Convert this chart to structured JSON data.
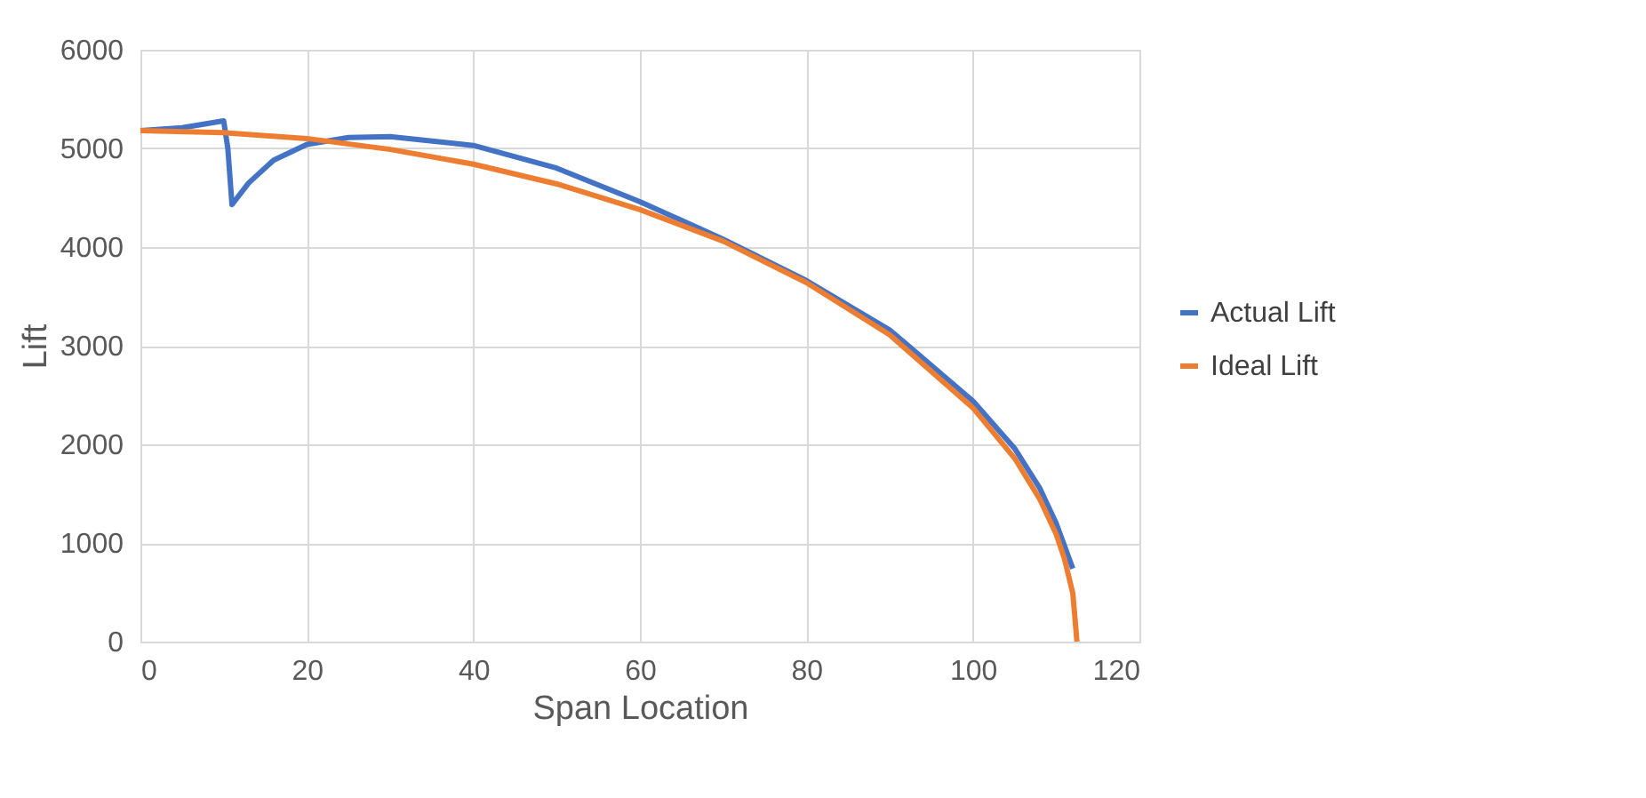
{
  "chart_data": {
    "type": "line",
    "xlabel": "Span Location",
    "ylabel": "Lift",
    "xlim": [
      0,
      120
    ],
    "xticks": [
      0,
      20,
      40,
      60,
      80,
      100,
      120
    ],
    "ylim": [
      0,
      6000
    ],
    "yticks": [
      0,
      1000,
      2000,
      3000,
      4000,
      5000,
      6000
    ],
    "grid": true,
    "legend": "right",
    "marker": "none",
    "line_style": "solid",
    "series": [
      {
        "name": "Actual Lift",
        "color": "#4472c4",
        "x": [
          0,
          5,
          10,
          10.5,
          11,
          13,
          16,
          20,
          25,
          30,
          40,
          50,
          60,
          70,
          80,
          90,
          100,
          105,
          108,
          110,
          112
        ],
        "values": [
          5180,
          5210,
          5280,
          5000,
          4430,
          4650,
          4880,
          5040,
          5110,
          5120,
          5030,
          4800,
          4460,
          4080,
          3660,
          3160,
          2440,
          1960,
          1560,
          1200,
          740
        ]
      },
      {
        "name": "Ideal Lift",
        "color": "#ed7d31",
        "x": [
          0,
          10,
          20,
          30,
          40,
          50,
          60,
          70,
          80,
          90,
          100,
          105,
          108,
          110,
          111,
          112,
          112.5
        ],
        "values": [
          5180,
          5160,
          5100,
          4990,
          4840,
          4640,
          4380,
          4060,
          3640,
          3110,
          2370,
          1860,
          1450,
          1090,
          840,
          490,
          0
        ]
      }
    ]
  }
}
